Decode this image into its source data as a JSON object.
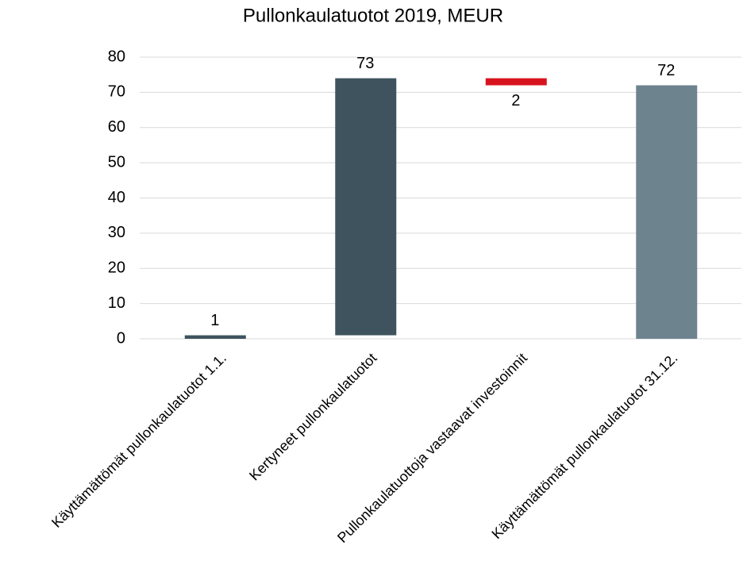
{
  "chart_data": {
    "type": "waterfall",
    "title": "Pullonkaulatuotot 2019, MEUR",
    "categories": [
      "Käyttämättömät pullonkaulatuotot 1.1.",
      "Kertyneet pullonkaulatuotot",
      "Pullonkaulatuottoja vastaavat investoinnit",
      "Käyttämättömät pullonkaulatuotot 31.12."
    ],
    "measure": [
      "absolute",
      "relative",
      "relative",
      "total"
    ],
    "values": [
      1,
      73,
      -2,
      72
    ],
    "value_labels": [
      "1",
      "73",
      "2",
      "72"
    ],
    "colors": [
      "#3e535d",
      "#3e535d",
      "#d7141e",
      "#6d838e"
    ],
    "ylim": [
      0,
      80
    ],
    "yticks": [
      0,
      10,
      20,
      30,
      40,
      50,
      60,
      70,
      80
    ],
    "grid": true
  }
}
